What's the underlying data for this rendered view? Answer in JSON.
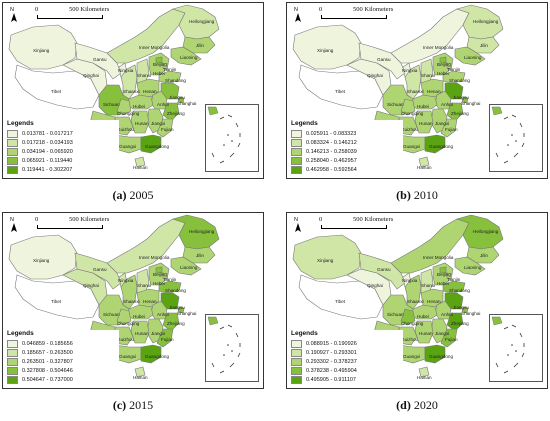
{
  "scale": {
    "zero": "0",
    "distance": "500 Kilometers"
  },
  "compass": {
    "north": "N"
  },
  "legend_title": "Legends",
  "province_labels": [
    "Heilongjiang",
    "Jilin",
    "Liaoning",
    "Inner Mongolia",
    "Xinjiang",
    "Gansu",
    "Ningxia",
    "Qinghai",
    "Tibet",
    "Shaanxi",
    "Shanxi",
    "Beijing",
    "Tianjin",
    "Hebei",
    "Shandong",
    "Henan",
    "Hubei",
    "Sichuan",
    "Chongqing",
    "Anhui",
    "Jiangsu",
    "Shanghai",
    "Zhejiang",
    "Jiangxi",
    "Hunan",
    "Guizhou",
    "Yunnan",
    "Guangxi",
    "Guangdong",
    "Fujian",
    "Hainan"
  ],
  "colors": [
    "#eef5dc",
    "#cfe6a6",
    "#aed572",
    "#86c03d",
    "#5aa411"
  ],
  "panels": [
    {
      "caption_letter": "(a)",
      "caption_year": "2005",
      "legend": [
        "0.013781 - 0.017217",
        "0.017218 - 0.034193",
        "0.034194 - 0.065920",
        "0.065921 - 0.119440",
        "0.119441 - 0.302207"
      ],
      "classes": {
        "Heilongjiang": 1,
        "Jilin": 2,
        "Liaoning": 2,
        "Inner Mongolia": 1,
        "Xinjiang": 0,
        "Gansu": 0,
        "Ningxia": 0,
        "Qinghai": 0,
        "Tibet": 0,
        "Shaanxi": 1,
        "Shanxi": 1,
        "Beijing": 3,
        "Tianjin": 2,
        "Hebei": 2,
        "Shandong": 2,
        "Henan": 2,
        "Hubei": 2,
        "Sichuan": 3,
        "Chongqing": 2,
        "Anhui": 2,
        "Jiangsu": 3,
        "Shanghai": 3,
        "Zhejiang": 3,
        "Jiangxi": 2,
        "Hunan": 2,
        "Guizhou": 2,
        "Yunnan": 2,
        "Guangxi": 2,
        "Guangdong": 4,
        "Fujian": 2,
        "Hainan": 1
      }
    },
    {
      "caption_letter": "(b)",
      "caption_year": "2010",
      "legend": [
        "0.025911 - 0.083323",
        "0.083324 - 0.146212",
        "0.146213 - 0.258039",
        "0.258040 - 0.462957",
        "0.462958 - 0.592564"
      ],
      "classes": {
        "Heilongjiang": 1,
        "Jilin": 1,
        "Liaoning": 2,
        "Inner Mongolia": 0,
        "Xinjiang": 0,
        "Gansu": 0,
        "Ningxia": 0,
        "Qinghai": 0,
        "Tibet": 0,
        "Shaanxi": 1,
        "Shanxi": 1,
        "Beijing": 3,
        "Tianjin": 2,
        "Hebei": 2,
        "Shandong": 2,
        "Henan": 2,
        "Hubei": 2,
        "Sichuan": 2,
        "Chongqing": 2,
        "Anhui": 2,
        "Jiangsu": 4,
        "Shanghai": 3,
        "Zhejiang": 3,
        "Jiangxi": 2,
        "Hunan": 2,
        "Guizhou": 2,
        "Yunnan": 2,
        "Guangxi": 2,
        "Guangdong": 4,
        "Fujian": 2,
        "Hainan": 1
      }
    },
    {
      "caption_letter": "(c)",
      "caption_year": "2015",
      "legend": [
        "0.046859 - 0.185656",
        "0.185657 - 0.263500",
        "0.263501 - 0.327807",
        "0.327808 - 0.504646",
        "0.504647 - 0.737000"
      ],
      "classes": {
        "Heilongjiang": 3,
        "Jilin": 2,
        "Liaoning": 2,
        "Inner Mongolia": 1,
        "Xinjiang": 0,
        "Gansu": 1,
        "Ningxia": 1,
        "Qinghai": 1,
        "Tibet": 0,
        "Shaanxi": 2,
        "Shanxi": 1,
        "Beijing": 3,
        "Tianjin": 2,
        "Hebei": 2,
        "Shandong": 3,
        "Henan": 2,
        "Hubei": 2,
        "Sichuan": 2,
        "Chongqing": 2,
        "Anhui": 2,
        "Jiangsu": 4,
        "Shanghai": 3,
        "Zhejiang": 3,
        "Jiangxi": 2,
        "Hunan": 2,
        "Guizhou": 2,
        "Yunnan": 2,
        "Guangxi": 2,
        "Guangdong": 4,
        "Fujian": 3,
        "Hainan": 1
      }
    },
    {
      "caption_letter": "(d)",
      "caption_year": "2020",
      "legend": [
        "0.088915 - 0.190926",
        "0.190927 - 0.293301",
        "0.293302 - 0.378237",
        "0.378238 - 0.495904",
        "0.495905 - 0.911107"
      ],
      "classes": {
        "Heilongjiang": 3,
        "Jilin": 2,
        "Liaoning": 2,
        "Inner Mongolia": 2,
        "Xinjiang": 1,
        "Gansu": 1,
        "Ningxia": 0,
        "Qinghai": 0,
        "Tibet": 0,
        "Shaanxi": 2,
        "Shanxi": 1,
        "Beijing": 3,
        "Tianjin": 2,
        "Hebei": 2,
        "Shandong": 3,
        "Henan": 2,
        "Hubei": 2,
        "Sichuan": 2,
        "Chongqing": 3,
        "Anhui": 2,
        "Jiangsu": 4,
        "Shanghai": 3,
        "Zhejiang": 4,
        "Jiangxi": 2,
        "Hunan": 2,
        "Guizhou": 2,
        "Yunnan": 2,
        "Guangxi": 2,
        "Guangdong": 4,
        "Fujian": 3,
        "Hainan": 1
      }
    }
  ]
}
